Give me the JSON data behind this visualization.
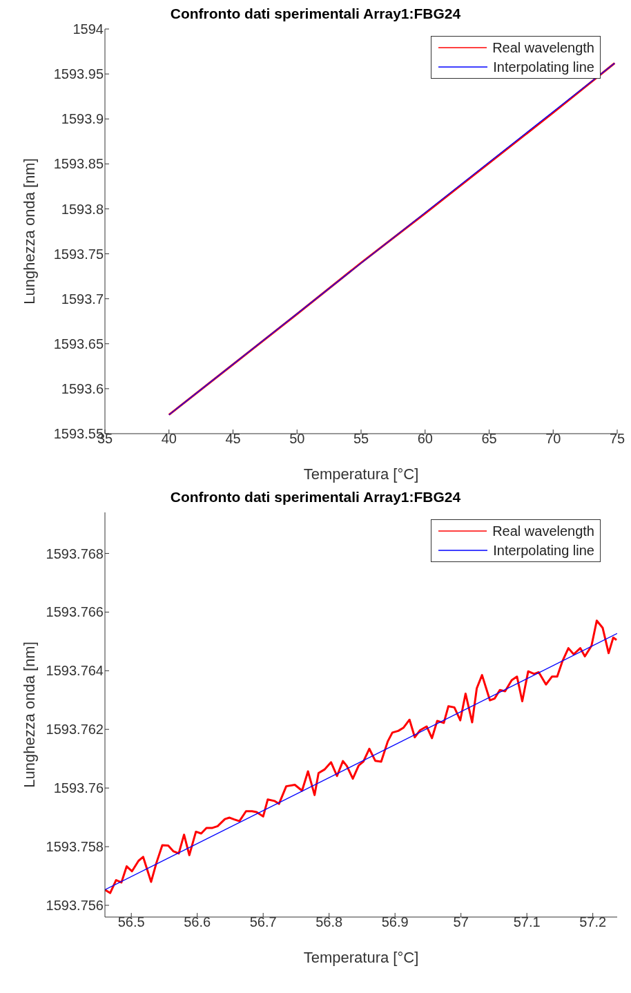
{
  "chart_data": [
    {
      "type": "line",
      "title": "Confronto dati sperimentali Array1:FBG24",
      "xlabel": "Temperatura [°C]",
      "ylabel": "Lunghezza onda [nm]",
      "xlim": [
        35,
        75
      ],
      "xticks": [
        35,
        40,
        45,
        50,
        55,
        60,
        65,
        70,
        75
      ],
      "ylim": [
        1593.55,
        1594
      ],
      "yticks": [
        1593.55,
        1593.6,
        1593.65,
        1593.7,
        1593.75,
        1593.8,
        1593.85,
        1593.9,
        1593.95,
        1594
      ],
      "grid": false,
      "legend": "top right",
      "marker": "none",
      "line_style": "solid",
      "series": [
        {
          "name": "Real wavelength",
          "color": "#ff0000",
          "x": [
            40,
            45,
            50,
            55,
            60,
            65,
            70,
            74.8
          ],
          "values": [
            1593.571,
            1593.627,
            1593.683,
            1593.74,
            1593.795,
            1593.851,
            1593.907,
            1593.962
          ]
        },
        {
          "name": "Interpolating line",
          "color": "#0000ff",
          "x": [
            40,
            74.8
          ],
          "values": [
            1593.571,
            1593.962
          ]
        }
      ]
    },
    {
      "type": "line",
      "title": "Confronto dati sperimentali Array1:FBG24",
      "xlabel": "Temperatura [°C]",
      "ylabel": "Lunghezza onda [nm]",
      "xlim": [
        56.46,
        57.237
      ],
      "xticks": [
        56.5,
        56.6,
        56.7,
        56.8,
        56.9,
        57,
        57.1,
        57.2
      ],
      "ylim": [
        1593.7556,
        1593.7694
      ],
      "yticks": [
        1593.756,
        1593.758,
        1593.76,
        1593.762,
        1593.764,
        1593.766,
        1593.768
      ],
      "grid": false,
      "legend": "top right",
      "marker": "none",
      "line_style": "solid",
      "series": [
        {
          "name": "Real wavelength",
          "color": "#ff0000",
          "x": [
            56.46,
            56.468,
            56.477,
            56.485,
            56.493,
            56.501,
            56.511,
            56.518,
            56.53,
            56.538,
            56.547,
            56.556,
            56.564,
            56.572,
            56.58,
            56.588,
            56.598,
            56.606,
            56.614,
            56.623,
            56.631,
            56.642,
            56.649,
            56.656,
            56.664,
            56.674,
            56.683,
            56.69,
            56.7,
            56.707,
            56.717,
            56.724,
            56.735,
            56.748,
            56.759,
            56.768,
            56.778,
            56.784,
            56.793,
            56.803,
            56.812,
            56.821,
            56.827,
            56.836,
            56.845,
            56.852,
            56.861,
            56.87,
            56.879,
            56.889,
            56.896,
            56.905,
            56.913,
            56.922,
            56.93,
            56.938,
            56.948,
            56.956,
            56.964,
            56.974,
            56.981,
            56.99,
            56.999,
            57.007,
            57.017,
            57.024,
            57.032,
            57.044,
            57.051,
            57.059,
            57.067,
            57.077,
            57.085,
            57.093,
            57.102,
            57.111,
            57.118,
            57.129,
            57.138,
            57.146,
            57.154,
            57.163,
            57.171,
            57.181,
            57.188,
            57.198,
            57.206,
            57.215,
            57.224,
            57.231,
            57.236
          ],
          "values": [
            1593.75653,
            1593.75642,
            1593.75686,
            1593.75678,
            1593.75733,
            1593.75716,
            1593.75752,
            1593.75765,
            1593.7568,
            1593.75744,
            1593.75805,
            1593.75804,
            1593.75784,
            1593.75777,
            1593.75841,
            1593.75771,
            1593.75851,
            1593.75845,
            1593.75864,
            1593.75864,
            1593.7587,
            1593.75894,
            1593.75899,
            1593.75893,
            1593.75887,
            1593.75921,
            1593.75921,
            1593.75918,
            1593.75903,
            1593.75961,
            1593.75956,
            1593.75946,
            1593.76006,
            1593.76011,
            1593.75991,
            1593.76057,
            1593.75976,
            1593.76051,
            1593.76063,
            1593.76088,
            1593.76041,
            1593.76092,
            1593.76075,
            1593.76032,
            1593.76077,
            1593.7609,
            1593.76134,
            1593.76093,
            1593.7609,
            1593.76159,
            1593.76189,
            1593.76195,
            1593.76206,
            1593.76233,
            1593.76173,
            1593.76197,
            1593.7621,
            1593.7617,
            1593.76229,
            1593.76222,
            1593.76279,
            1593.76275,
            1593.76231,
            1593.76322,
            1593.76224,
            1593.7634,
            1593.76385,
            1593.76299,
            1593.76305,
            1593.76334,
            1593.7633,
            1593.76368,
            1593.7638,
            1593.76296,
            1593.76398,
            1593.76389,
            1593.76395,
            1593.76353,
            1593.7638,
            1593.7638,
            1593.76433,
            1593.76477,
            1593.76456,
            1593.76477,
            1593.76449,
            1593.76485,
            1593.76571,
            1593.76546,
            1593.7646,
            1593.76513,
            1593.76505
          ]
        },
        {
          "name": "Interpolating line",
          "color": "#0000ff",
          "x": [
            56.46,
            57.237
          ],
          "values": [
            1593.75653,
            1593.76527
          ]
        }
      ]
    }
  ]
}
